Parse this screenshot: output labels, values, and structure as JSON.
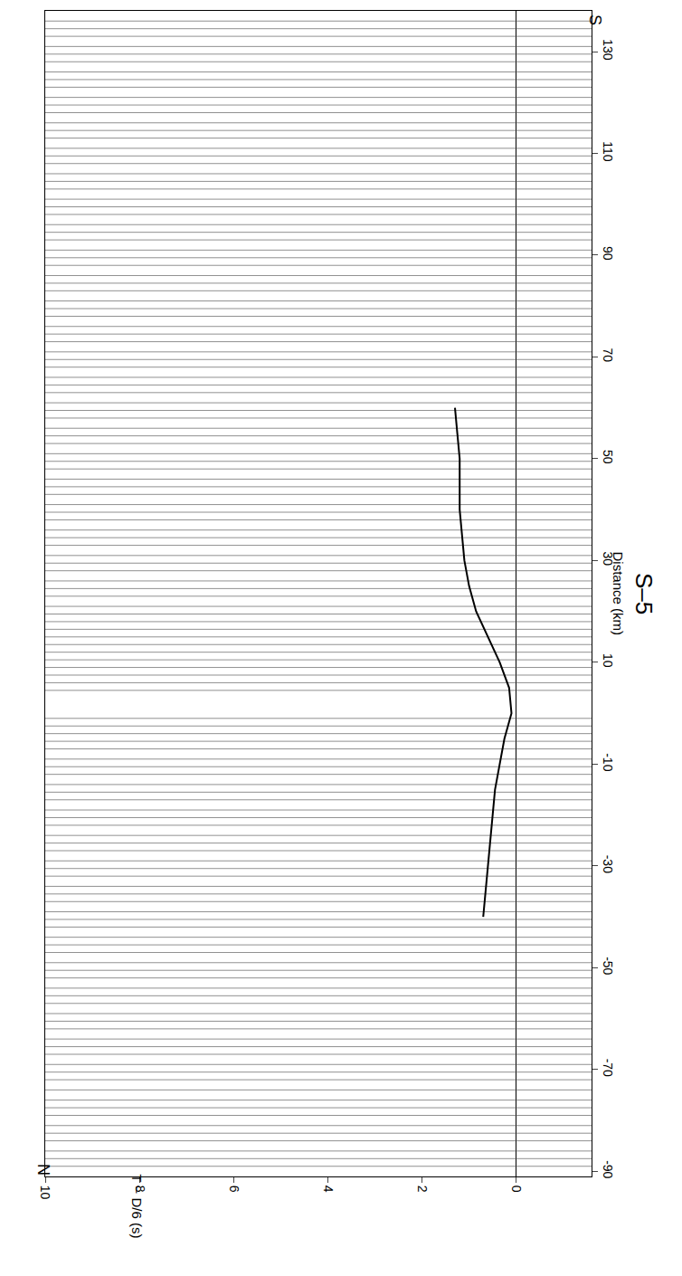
{
  "chart_data": {
    "type": "line",
    "title": "S–5",
    "x_label": "T − D/6 (s)",
    "y_label": "Distance (km)",
    "end_labels": [
      "N",
      "S"
    ],
    "xlim": [
      10,
      -1.6
    ],
    "xticks": [
      0,
      2,
      4,
      6,
      8,
      10
    ],
    "ylim": [
      -91,
      138
    ],
    "yticks": [
      -90,
      -70,
      -50,
      -30,
      -10,
      10,
      30,
      50,
      70,
      90,
      110,
      130
    ],
    "grid": false,
    "traces": [
      -89,
      -87.5,
      -86,
      -84,
      -82.5,
      -81,
      -79,
      -77.5,
      -76,
      -74,
      -72,
      -70.5,
      -69,
      -67,
      -65.5,
      -64,
      -62,
      -60.5,
      -59,
      -57,
      -55.5,
      -54,
      -52,
      -50.5,
      -49,
      -47,
      -45.5,
      -44,
      -42,
      -40.5,
      -39,
      -37,
      -35.5,
      -34,
      -32,
      -30.5,
      -29,
      -27,
      -25.5,
      -24,
      -22,
      -20.5,
      -19,
      -17,
      -15.5,
      -14,
      -12,
      -10.5,
      -9,
      -7,
      -5.5,
      -4,
      -2.5,
      -1,
      4.5,
      6,
      7.5,
      9,
      10.5,
      12,
      13.5,
      15,
      16.5,
      18,
      19.5,
      21,
      23,
      24.5,
      26,
      28,
      29.5,
      31,
      33,
      34.5,
      36,
      38,
      39.5,
      41,
      43,
      44.5,
      46,
      48,
      49.5,
      51,
      53,
      54.5,
      56,
      58,
      59.5,
      61,
      63,
      64.5,
      66,
      68,
      69.5,
      71,
      73,
      74.5,
      76,
      78,
      79.5,
      81,
      83,
      84.5,
      86,
      88,
      89.5,
      91,
      93,
      94.5,
      96,
      98,
      99.5,
      101,
      103,
      104.5,
      106,
      108,
      109.5,
      111,
      113,
      114.5,
      116,
      118,
      119.5,
      121,
      123,
      124.5,
      126,
      128,
      129.5,
      131,
      133,
      134.5,
      136
    ],
    "series": [
      {
        "color": "#000000",
        "x": [
          0.7,
          0.65,
          0.6,
          0.55,
          0.5,
          0.45,
          0.35,
          0.25,
          0.1,
          0.15,
          0.35,
          0.6,
          0.85,
          1.0,
          1.1,
          1.15,
          1.2,
          1.2,
          1.2,
          1.25,
          1.3
        ],
        "y": [
          -40,
          -35,
          -30,
          -25,
          -20,
          -15,
          -10,
          -5,
          0,
          5,
          10,
          15,
          20,
          25,
          30,
          35,
          40,
          45,
          50,
          55,
          60
        ]
      }
    ]
  }
}
